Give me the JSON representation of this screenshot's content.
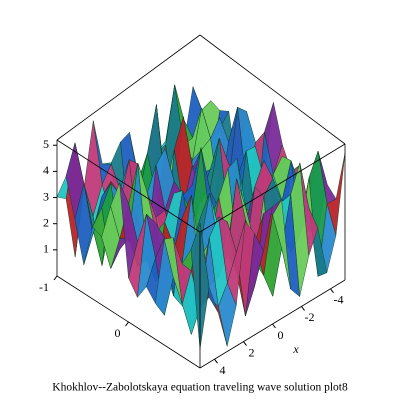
{
  "chart_data": {
    "type": "surface3d",
    "title": "Khokhlov--Zabolotskaya equation traveling wave solution plot8",
    "xlabel": "x",
    "xlim": [
      -5,
      5
    ],
    "xticks": [
      -4,
      -2,
      0,
      2,
      4
    ],
    "ylim": [
      -1,
      1
    ],
    "yticks": [
      -1,
      0
    ],
    "zlim": [
      0,
      5.2
    ],
    "zticks": [
      1,
      2,
      3,
      4,
      5
    ]
  }
}
